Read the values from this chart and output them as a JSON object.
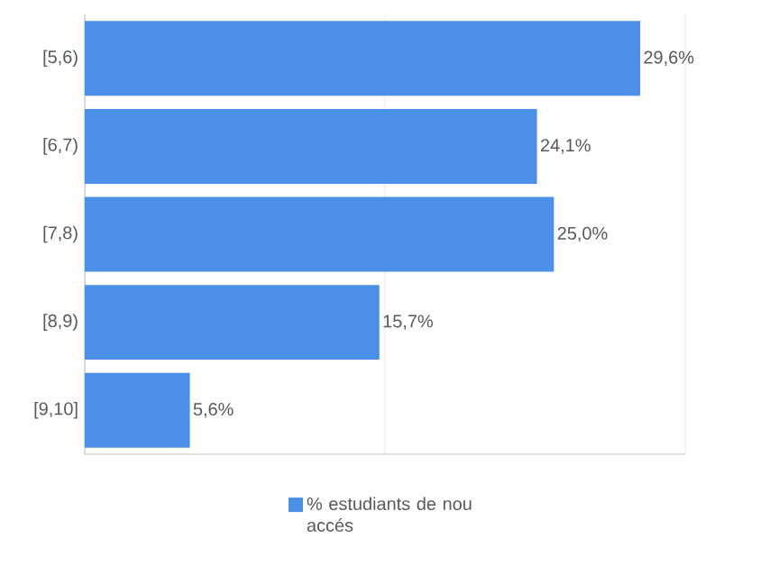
{
  "chart_data": {
    "type": "bar",
    "orientation": "horizontal",
    "categories": [
      "[5,6)",
      "[6,7)",
      "[7,8)",
      "[8,9)",
      "[9,10]"
    ],
    "series": [
      {
        "name": "% estudiants de nou accés",
        "color": "#4a90e8",
        "values": [
          29.6,
          24.1,
          25.0,
          15.7,
          5.6
        ],
        "value_labels": [
          "29,6%",
          "24,1%",
          "25,0%",
          "15,7%",
          "5,6%"
        ]
      }
    ],
    "xlim": [
      0,
      32
    ],
    "xticks": [
      {
        "value": 0,
        "label": null
      },
      {
        "value": 16,
        "label": null
      },
      {
        "value": 32,
        "label": null
      }
    ],
    "grid": "x",
    "legend": "bottom"
  }
}
